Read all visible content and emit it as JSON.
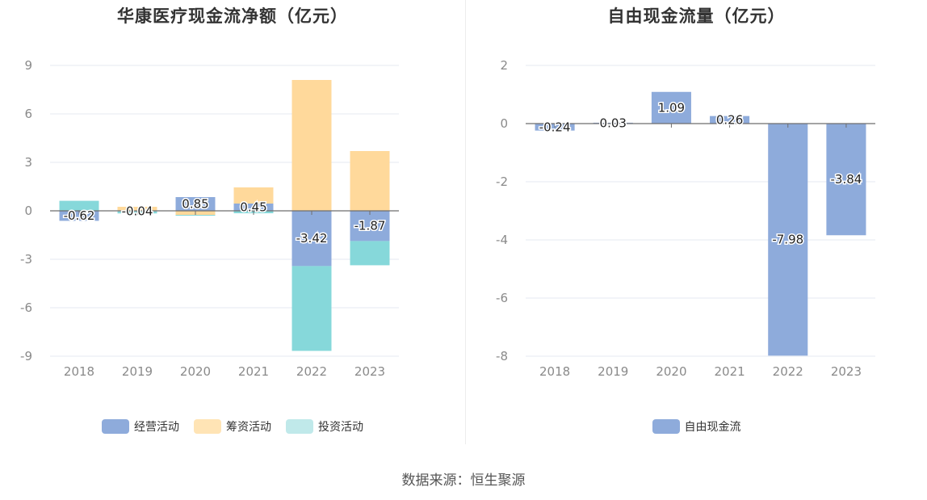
{
  "colors": {
    "operating": "#8eabdb",
    "financing": "#ffd99b",
    "investing": "#86d8da",
    "fcf": "#8eabdb",
    "grid": "#e6e9f2",
    "axis": "#6e6e6e"
  },
  "source": "数据来源：恒生聚源",
  "chart_data": [
    {
      "type": "bar",
      "stacked": true,
      "title": "华康医疗现金流净额（亿元）",
      "categories": [
        "2018",
        "2019",
        "2020",
        "2021",
        "2022",
        "2023"
      ],
      "ylim": [
        -9,
        9
      ],
      "yticks": [
        9,
        6,
        3,
        0,
        -3,
        -6,
        -9
      ],
      "grid": true,
      "legend_position": "bottom",
      "series": [
        {
          "name": "经营活动",
          "values": [
            -0.62,
            -0.04,
            0.85,
            0.45,
            -3.42,
            -1.87
          ],
          "labeled": true
        },
        {
          "name": "筹资活动",
          "values": [
            0.0,
            0.25,
            -0.25,
            1.0,
            8.1,
            3.7
          ],
          "labeled": false
        },
        {
          "name": "投资活动",
          "values": [
            0.62,
            -0.12,
            -0.05,
            -0.15,
            -5.25,
            -1.5
          ],
          "labeled": false
        }
      ],
      "data_labels": [
        "-0.62",
        "-0.04",
        "0.85",
        "0.45",
        "-3.42",
        "-1.87"
      ]
    },
    {
      "type": "bar",
      "title": "自由现金流量（亿元）",
      "categories": [
        "2018",
        "2019",
        "2020",
        "2021",
        "2022",
        "2023"
      ],
      "ylim": [
        -8,
        2
      ],
      "yticks": [
        2,
        0,
        -2,
        -4,
        -6,
        -8
      ],
      "grid": true,
      "legend_position": "bottom",
      "series": [
        {
          "name": "自由现金流",
          "values": [
            -0.24,
            0.03,
            1.09,
            0.26,
            -7.98,
            -3.84
          ],
          "labeled": true
        }
      ],
      "data_labels": [
        "-0.24",
        "0.03",
        "1.09",
        "0.26",
        "-7.98",
        "-3.84"
      ]
    }
  ]
}
